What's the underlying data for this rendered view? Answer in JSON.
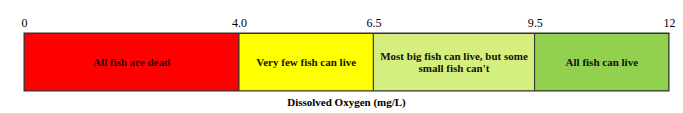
{
  "chart_data": {
    "type": "bar",
    "orientation": "horizontal",
    "stacked": true,
    "categories": [
      "All fish are dead",
      "Very few fish can live",
      "Most big fish can live, but some small fish can't",
      "All fish can live"
    ],
    "values": [
      4,
      2.5,
      3,
      2.5
    ],
    "colors": [
      "#ff0000",
      "#ffff00",
      "#d5ef7f",
      "#92d050"
    ],
    "xlabel": "Dissolved Oxygen (mg/L)",
    "xlim": [
      0,
      12
    ],
    "xticks": [
      0,
      {
        "value": 4,
        "label": "4.0"
      },
      6.5,
      9.5,
      12
    ],
    "data_labels": false
  }
}
